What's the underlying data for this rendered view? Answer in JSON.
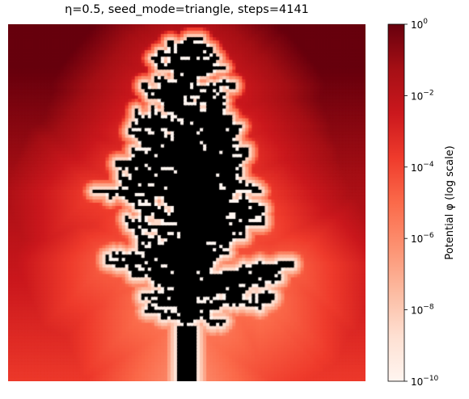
{
  "chart_data": {
    "type": "heatmap",
    "title": "η=0.5, seed_mode=triangle, steps=4141",
    "colorbar": {
      "label": "Potential φ (log scale)",
      "scale": "log",
      "range": [
        1e-10,
        1
      ],
      "ticks": [
        {
          "value": 1.0,
          "base": "10",
          "exp": "0"
        },
        {
          "value": 0.01,
          "base": "10",
          "exp": "−2"
        },
        {
          "value": 0.0001,
          "base": "10",
          "exp": "−4"
        },
        {
          "value": 1e-06,
          "base": "10",
          "exp": "−6"
        },
        {
          "value": 1e-08,
          "base": "10",
          "exp": "−8"
        },
        {
          "value": 1e-10,
          "base": "10",
          "exp": "−10"
        }
      ],
      "colormap": [
        "#fff5f0",
        "#fee0d2",
        "#fcbba1",
        "#fc9272",
        "#fb6a4a",
        "#ef3b2c",
        "#cb181d",
        "#a50f15",
        "#67000d"
      ]
    },
    "axes_visible": false,
    "pattern": "dielectric breakdown cluster (black) grown from a seed at bottom-center, potential field shaded red"
  }
}
